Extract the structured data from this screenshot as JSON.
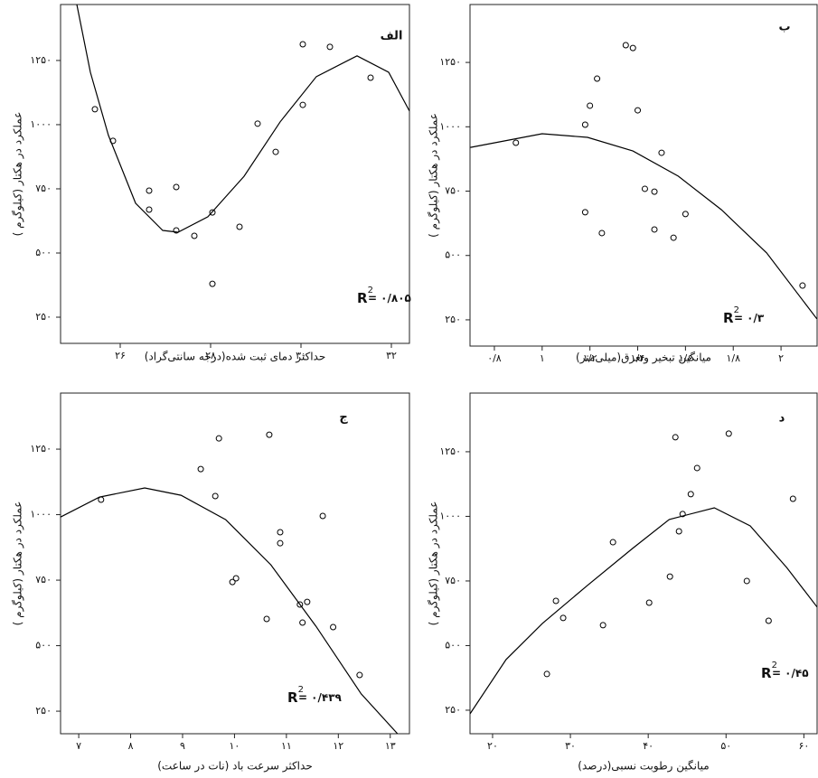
{
  "chart_data": [
    {
      "type": "scatter",
      "title": "الف",
      "x_label": "حداکثر دمای ثبت شده(درجه سانتی‌گراد)",
      "y_label": "عملکرد در هکتار (کیلوگرم )",
      "xlim": [
        24.68,
        32.4
      ],
      "ylim": [
        148,
        1468
      ],
      "xticks": [
        {
          "value": 26,
          "label": "۲۶"
        },
        {
          "value": 28,
          "label": "۲۸"
        },
        {
          "value": 30,
          "label": "۳۰"
        },
        {
          "value": 32,
          "label": "۳۲"
        }
      ],
      "yticks": [
        {
          "value": 250,
          "label": "۲۵۰"
        },
        {
          "value": 500,
          "label": "۵۰۰"
        },
        {
          "value": 750,
          "label": "۷۵۰"
        },
        {
          "value": 1000,
          "label": "۱۰۰۰"
        },
        {
          "value": 1250,
          "label": "۱۲۵۰"
        }
      ],
      "series": [
        {
          "color": "#000000",
          "x": [
            25.44,
            25.84,
            26.64,
            26.64,
            27.24,
            27.24,
            27.64,
            28.04,
            28.04,
            28.64,
            29.04,
            29.44,
            30.04,
            30.04,
            30.64,
            31.54
          ],
          "values": [
            1060,
            937,
            743,
            669,
            757,
            588,
            567,
            658,
            380,
            602,
            1004,
            894,
            1077,
            1313,
            1303,
            1183
          ]
        }
      ],
      "fit": {
        "color": "#000000",
        "x": [
          25.04,
          25.34,
          25.74,
          26.34,
          26.94,
          27.28,
          27.94,
          28.74,
          29.54,
          30.34,
          31.24,
          31.94,
          32.4
        ],
        "values": [
          1468,
          1204,
          958,
          694,
          588,
          581,
          641,
          799,
          1011,
          1187,
          1268,
          1204,
          1053
        ]
      },
      "annotation": {
        "symbol": "R",
        "superscript": "2",
        "text": "= ۰/۸۰۵"
      }
    },
    {
      "type": "scatter",
      "title": "ب",
      "x_label": "میانگین تبخیر وتعرق(میلی‌متر)",
      "y_label": "عملکرد در هکتار (کیلوگرم )",
      "xlim": [
        0.698,
        2.151
      ],
      "ylim": [
        148,
        1475
      ],
      "xticks": [
        {
          "value": 0.8,
          "label": "۰/۸"
        },
        {
          "value": 1,
          "label": "۱"
        },
        {
          "value": 1.2,
          "label": "۱/۲"
        },
        {
          "value": 1.4,
          "label": "۱/۴"
        },
        {
          "value": 1.6,
          "label": "۱/۶"
        },
        {
          "value": 1.8,
          "label": "۱/۸"
        },
        {
          "value": 2,
          "label": "۲"
        }
      ],
      "yticks": [
        {
          "value": 250,
          "label": "۲۵۰"
        },
        {
          "value": 500,
          "label": "۵۰۰"
        },
        {
          "value": 750,
          "label": "۷۵۰"
        },
        {
          "value": 1000,
          "label": "۱۰۰۰"
        },
        {
          "value": 1250,
          "label": "۱۲۵۰"
        }
      ],
      "series": [
        {
          "color": "#000000",
          "x": [
            0.89,
            1.18,
            1.18,
            1.2,
            1.23,
            1.25,
            1.35,
            1.38,
            1.4,
            1.43,
            1.47,
            1.47,
            1.5,
            1.55,
            1.6,
            2.09
          ],
          "values": [
            938,
            668,
            1008,
            1082,
            1187,
            587,
            1317,
            1306,
            1064,
            759,
            601,
            748,
            899,
            569,
            661,
            383
          ]
        }
      ],
      "fit": {
        "color": "#000000",
        "x": [
          0.7,
          1.0,
          1.19,
          1.38,
          1.57,
          1.75,
          1.94,
          2.15
        ],
        "values": [
          920,
          973,
          959,
          906,
          808,
          678,
          510,
          254
        ]
      },
      "annotation": {
        "symbol": "R",
        "superscript": "2",
        "text": "= ۰/۳"
      }
    },
    {
      "type": "scatter",
      "title": "ج",
      "x_label": "حداکثر سرعت باد (نات در ساعت)",
      "y_label": "عملکرد در هکتار (کیلوگرم )",
      "xlim": [
        6.65,
        13.37
      ],
      "ylim": [
        164,
        1464
      ],
      "xticks": [
        {
          "value": 7,
          "label": "۷"
        },
        {
          "value": 8,
          "label": "۸"
        },
        {
          "value": 9,
          "label": "۹"
        },
        {
          "value": 10,
          "label": "۱۰"
        },
        {
          "value": 11,
          "label": "۱۱"
        },
        {
          "value": 12,
          "label": "۱۲"
        },
        {
          "value": 13,
          "label": "۱۳"
        }
      ],
      "yticks": [
        {
          "value": 250,
          "label": "۲۵۰"
        },
        {
          "value": 500,
          "label": "۵۰۰"
        },
        {
          "value": 750,
          "label": "۷۵۰"
        },
        {
          "value": 1000,
          "label": "۱۰۰۰"
        },
        {
          "value": 1250,
          "label": "۱۲۵۰"
        }
      ],
      "series": [
        {
          "color": "#000000",
          "x": [
            7.43,
            9.35,
            9.63,
            9.7,
            9.96,
            10.03,
            10.62,
            10.67,
            10.88,
            10.88,
            11.26,
            11.31,
            11.4,
            11.7,
            11.9,
            12.41
          ],
          "values": [
            1057,
            1174,
            1071,
            1291,
            743,
            757,
            602,
            1305,
            933,
            891,
            657,
            588,
            667,
            995,
            571,
            388
          ]
        }
      ],
      "fit": {
        "color": "#000000",
        "x": [
          6.65,
          7.4,
          8.27,
          8.97,
          9.83,
          10.7,
          11.57,
          12.44,
          13.14
        ],
        "values": [
          991,
          1067,
          1102,
          1074,
          981,
          809,
          574,
          316,
          164
        ]
      },
      "annotation": {
        "symbol": "R",
        "superscript": "2",
        "text": "= ۰/۴۳۹"
      }
    },
    {
      "type": "scatter",
      "title": "د",
      "x_label": "میانگین رطوبت نسبی(درصد)",
      "y_label": "عملکرد در هکتار (کیلوگرم )",
      "xlim": [
        17.1,
        61.7
      ],
      "ylim": [
        159,
        1477
      ],
      "xticks": [
        {
          "value": 20,
          "label": "۲۰"
        },
        {
          "value": 30,
          "label": "۳۰"
        },
        {
          "value": 40,
          "label": "۴۰"
        },
        {
          "value": 50,
          "label": "۵۰"
        },
        {
          "value": 60,
          "label": "۶۰"
        }
      ],
      "yticks": [
        {
          "value": 250,
          "label": "۲۵۰"
        },
        {
          "value": 500,
          "label": "۵۰۰"
        },
        {
          "value": 750,
          "label": "۷۵۰"
        },
        {
          "value": 1000,
          "label": "۱۰۰۰"
        },
        {
          "value": 1250,
          "label": "۱۲۵۰"
        }
      ],
      "series": [
        {
          "color": "#000000",
          "x": [
            26.98,
            28.14,
            29.07,
            34.19,
            35.47,
            40.12,
            42.79,
            43.49,
            43.95,
            44.42,
            45.47,
            46.28,
            50.35,
            52.67,
            55.47,
            58.6
          ],
          "values": [
            390,
            673,
            607,
            579,
            900,
            666,
            767,
            1306,
            942,
            1009,
            1086,
            1187,
            1320,
            750,
            596,
            1068
          ]
        }
      ],
      "fit": {
        "color": "#000000",
        "x": [
          17.1,
          21.74,
          26.4,
          32.2,
          38.0,
          42.7,
          48.5,
          53.1,
          57.8,
          61.7
        ],
        "values": [
          236,
          446,
          586,
          733,
          876,
          988,
          1033,
          963,
          802,
          649
        ]
      },
      "annotation": {
        "symbol": "R",
        "superscript": "2",
        "text": "= ۰/۴۵"
      }
    }
  ]
}
